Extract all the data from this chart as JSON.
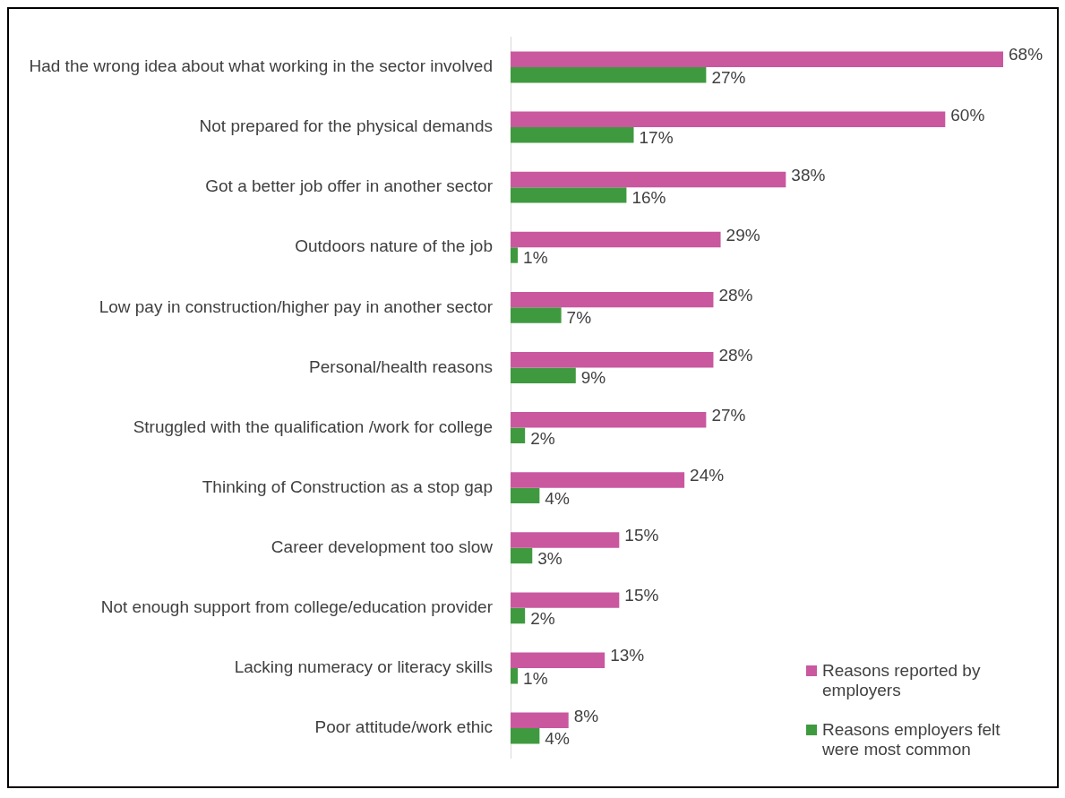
{
  "chart_data": {
    "type": "bar",
    "orientation": "horizontal",
    "legend": "bottom right",
    "grid": false,
    "categories": [
      "Had the wrong idea about what working in the sector involved",
      "Not prepared for the physical demands",
      "Got a better job offer in another sector",
      "Outdoors nature of the job",
      "Low pay in construction/higher pay in another sector",
      "Personal/health reasons",
      "Struggled with the qualification /work for college",
      "Thinking of Construction as a stop gap",
      "Career development too slow",
      "Not enough support from college/education provider",
      "Lacking numeracy or literacy skills",
      "Poor attitude/work ethic"
    ],
    "series": [
      {
        "name": "Reasons reported by employers",
        "color": "#c9589f",
        "values": [
          68,
          60,
          38,
          29,
          28,
          28,
          27,
          24,
          15,
          15,
          13,
          8
        ],
        "value_labels": [
          "68%",
          "60%",
          "38%",
          "29%",
          "28%",
          "28%",
          "27%",
          "24%",
          "15%",
          "15%",
          "13%",
          "8%"
        ]
      },
      {
        "name": "Reasons employers felt were most common",
        "color": "#3f9a3f",
        "values": [
          27,
          17,
          16,
          1,
          7,
          9,
          2,
          4,
          3,
          2,
          1,
          4
        ],
        "value_labels": [
          "27%",
          "17%",
          "16%",
          "1%",
          "7%",
          "9%",
          "2%",
          "4%",
          "3%",
          "2%",
          "1%",
          "4%"
        ]
      }
    ]
  }
}
